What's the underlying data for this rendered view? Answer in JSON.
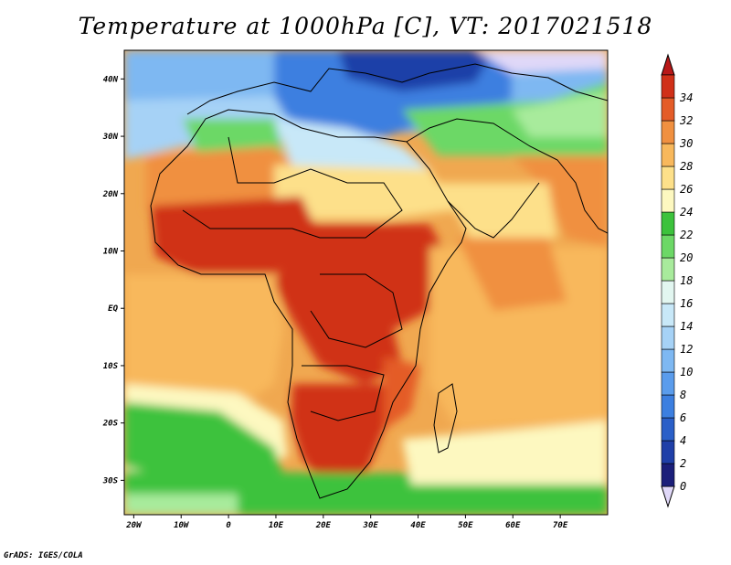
{
  "title": "Temperature at 1000hPa [C], VT: 2017021518",
  "credit": "GrADS: IGES/COLA",
  "map": {
    "lon_range": [
      -22,
      80
    ],
    "lat_range": [
      -36,
      45
    ],
    "x_ticks": [
      {
        "value": -20,
        "label": "20W"
      },
      {
        "value": -10,
        "label": "10W"
      },
      {
        "value": 0,
        "label": "0"
      },
      {
        "value": 10,
        "label": "10E"
      },
      {
        "value": 20,
        "label": "20E"
      },
      {
        "value": 30,
        "label": "30E"
      },
      {
        "value": 40,
        "label": "40E"
      },
      {
        "value": 50,
        "label": "50E"
      },
      {
        "value": 60,
        "label": "60E"
      },
      {
        "value": 70,
        "label": "70E"
      }
    ],
    "y_ticks": [
      {
        "value": 40,
        "label": "40N"
      },
      {
        "value": 30,
        "label": "30N"
      },
      {
        "value": 20,
        "label": "20N"
      },
      {
        "value": 10,
        "label": "10N"
      },
      {
        "value": 0,
        "label": "EQ"
      },
      {
        "value": -10,
        "label": "10S"
      },
      {
        "value": -20,
        "label": "20S"
      },
      {
        "value": -30,
        "label": "30S"
      }
    ]
  },
  "colorbar": {
    "labels": [
      "0",
      "2",
      "4",
      "6",
      "8",
      "10",
      "12",
      "14",
      "16",
      "18",
      "20",
      "22",
      "24",
      "26",
      "28",
      "30",
      "32",
      "34"
    ],
    "colors": [
      "#1b1f7a",
      "#1f3fa8",
      "#2a5fc8",
      "#3c7fe0",
      "#5a9cec",
      "#7eb8f2",
      "#a6d2f6",
      "#c8e8f8",
      "#e2f6f0",
      "#a8eb9c",
      "#6cd866",
      "#3cc23c",
      "#fdf8c0",
      "#fde08a",
      "#f8b85c",
      "#f09040",
      "#e45c28",
      "#d03018"
    ],
    "under_color": "#e0d8f8",
    "over_color": "#b81818"
  }
}
